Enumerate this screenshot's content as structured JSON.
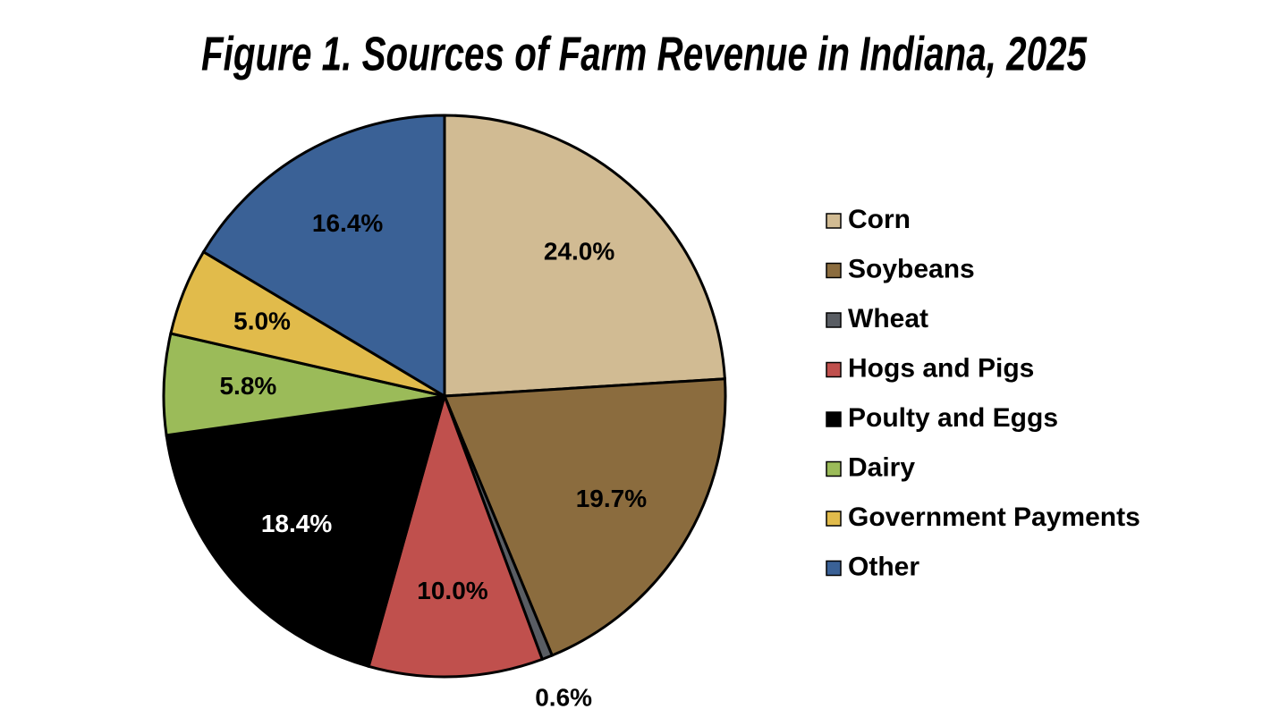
{
  "chart_data": {
    "type": "pie",
    "title": "Figure 1.  Sources of Farm Revenue in Indiana, 2025",
    "categories": [
      "Corn",
      "Soybeans",
      "Wheat",
      "Hogs and Pigs",
      "Poulty and Eggs",
      "Dairy",
      "Government Payments",
      "Other"
    ],
    "values": [
      24.0,
      19.7,
      0.6,
      10.0,
      18.4,
      5.8,
      5.0,
      16.4
    ],
    "value_labels": [
      "24.0%",
      "19.7%",
      "0.6%",
      "10.0%",
      "18.4%",
      "5.8%",
      "5.0%",
      "16.4%"
    ],
    "colors": [
      "#d1bb93",
      "#8b6c3e",
      "#595d63",
      "#c0504d",
      "#000000",
      "#9bbb59",
      "#e1bb4b",
      "#3a6196"
    ],
    "legend": "right"
  }
}
